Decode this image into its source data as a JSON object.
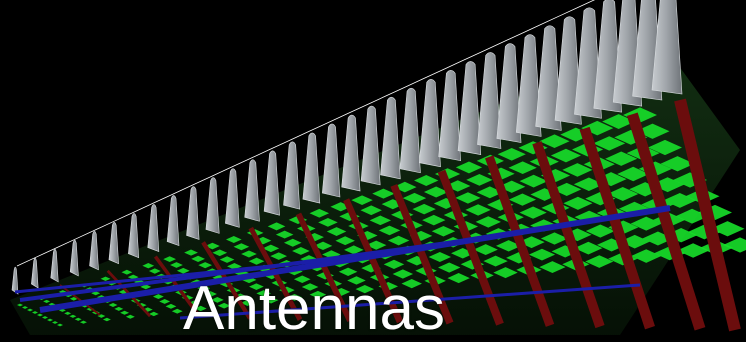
{
  "image": {
    "caption": "Antennas",
    "colors": {
      "background": "#000000",
      "fins": "#9ea3a8",
      "fins_shadow": "#6e7378",
      "elements": "#17e02a",
      "red_beams": "#6b0d0d",
      "blue_beams": "#1b1ea8",
      "caption": "#ffffff"
    },
    "icons": [
      "antenna-array-render"
    ]
  }
}
